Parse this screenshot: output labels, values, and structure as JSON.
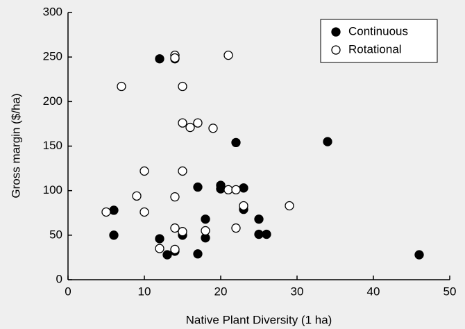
{
  "chart_data": {
    "type": "scatter",
    "x_label": "Native Plant Diversity (1 ha)",
    "y_label": "Gross margin ($/ha)",
    "xlim": [
      0,
      50
    ],
    "xticks": [
      0,
      10,
      20,
      30,
      40,
      50
    ],
    "ylim": [
      0,
      300
    ],
    "yticks": [
      0,
      50,
      100,
      150,
      200,
      250,
      300
    ],
    "legend": "top-right",
    "series": [
      {
        "name": "Continuous",
        "color": "#000000",
        "filled": true,
        "x": [
          12,
          14,
          6,
          6,
          12,
          13,
          14,
          15,
          17,
          17,
          18,
          18,
          20,
          20,
          22,
          23,
          23,
          25,
          25,
          26,
          34,
          46
        ],
        "values": [
          248,
          248,
          78,
          50,
          46,
          28,
          32,
          50,
          104,
          29,
          68,
          47,
          106,
          102,
          154,
          103,
          79,
          68,
          51,
          51,
          155,
          28
        ]
      },
      {
        "name": "Rotational",
        "color": "#000000",
        "filled": false,
        "x": [
          14,
          14,
          21,
          7,
          15,
          15,
          16,
          17,
          19,
          10,
          15,
          9,
          5,
          10,
          14,
          21,
          22,
          23,
          29,
          14,
          15,
          18,
          22,
          12,
          14
        ],
        "values": [
          252,
          249,
          252,
          217,
          217,
          176,
          171,
          176,
          170,
          122,
          122,
          94,
          76,
          76,
          93,
          101,
          101,
          83,
          83,
          58,
          54,
          55,
          58,
          35,
          34
        ]
      }
    ]
  }
}
